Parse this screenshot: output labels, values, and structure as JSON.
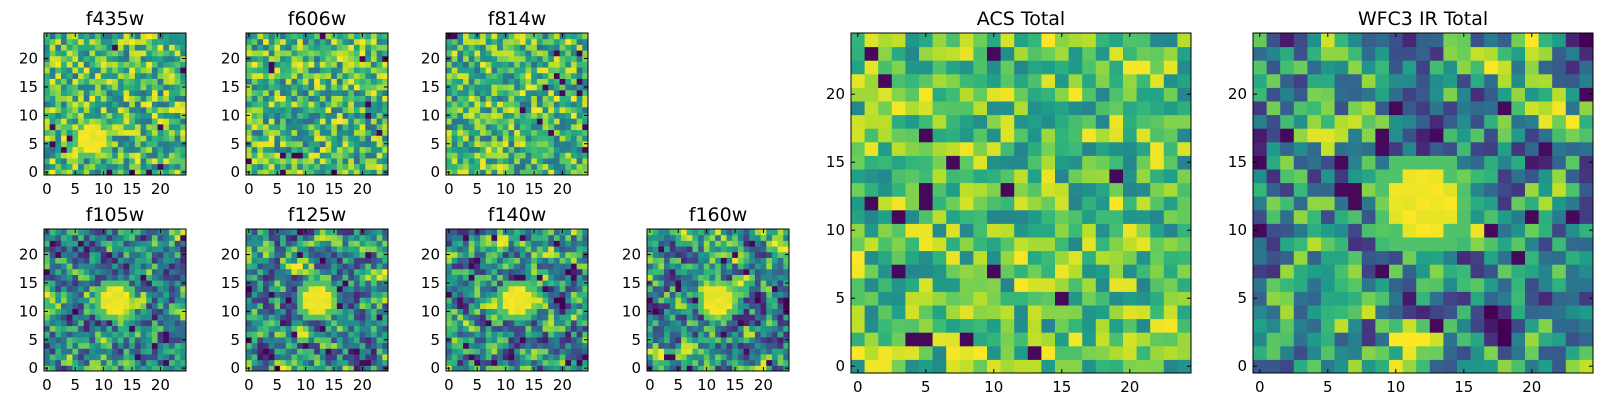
{
  "figure": {
    "colormap": "viridis"
  },
  "chart_data": [
    {
      "type": "heatmap",
      "title": "f435w",
      "grid_size": 25,
      "xticks": [
        0,
        5,
        10,
        15,
        20
      ],
      "yticks": [
        0,
        5,
        10,
        15,
        20
      ],
      "pattern": "noise",
      "hot_spot": [
        8,
        6
      ]
    },
    {
      "type": "heatmap",
      "title": "f606w",
      "grid_size": 25,
      "xticks": [
        0,
        5,
        10,
        15,
        20
      ],
      "yticks": [
        0,
        5,
        10,
        15,
        20
      ],
      "pattern": "noise"
    },
    {
      "type": "heatmap",
      "title": "f814w",
      "grid_size": 25,
      "xticks": [
        0,
        5,
        10,
        15,
        20
      ],
      "yticks": [
        0,
        5,
        10,
        15,
        20
      ],
      "pattern": "noise"
    },
    {
      "type": "heatmap",
      "title": "f105w",
      "grid_size": 25,
      "xticks": [
        0,
        5,
        10,
        15,
        20
      ],
      "yticks": [
        0,
        5,
        10,
        15,
        20
      ],
      "pattern": "smooth",
      "hot_spot": [
        12,
        12
      ]
    },
    {
      "type": "heatmap",
      "title": "f125w",
      "grid_size": 25,
      "xticks": [
        0,
        5,
        10,
        15,
        20
      ],
      "yticks": [
        0,
        5,
        10,
        15,
        20
      ],
      "pattern": "smooth",
      "hot_spot": [
        12,
        12
      ]
    },
    {
      "type": "heatmap",
      "title": "f140w",
      "grid_size": 25,
      "xticks": [
        0,
        5,
        10,
        15,
        20
      ],
      "yticks": [
        0,
        5,
        10,
        15,
        20
      ],
      "pattern": "smooth",
      "hot_spot": [
        12,
        12
      ]
    },
    {
      "type": "heatmap",
      "title": "f160w",
      "grid_size": 25,
      "xticks": [
        0,
        5,
        10,
        15,
        20
      ],
      "yticks": [
        0,
        5,
        10,
        15,
        20
      ],
      "pattern": "smooth",
      "hot_spot": [
        12,
        12
      ]
    },
    {
      "type": "heatmap",
      "title": "ACS Total",
      "grid_size": 25,
      "xticks": [
        0,
        5,
        10,
        15,
        20
      ],
      "yticks": [
        0,
        5,
        10,
        15,
        20
      ],
      "pattern": "noise-bright"
    },
    {
      "type": "heatmap",
      "title": "WFC3 IR Total",
      "grid_size": 25,
      "xticks": [
        0,
        5,
        10,
        15,
        20
      ],
      "yticks": [
        0,
        5,
        10,
        15,
        20
      ],
      "pattern": "smooth",
      "hot_spot": [
        12,
        12
      ]
    }
  ]
}
